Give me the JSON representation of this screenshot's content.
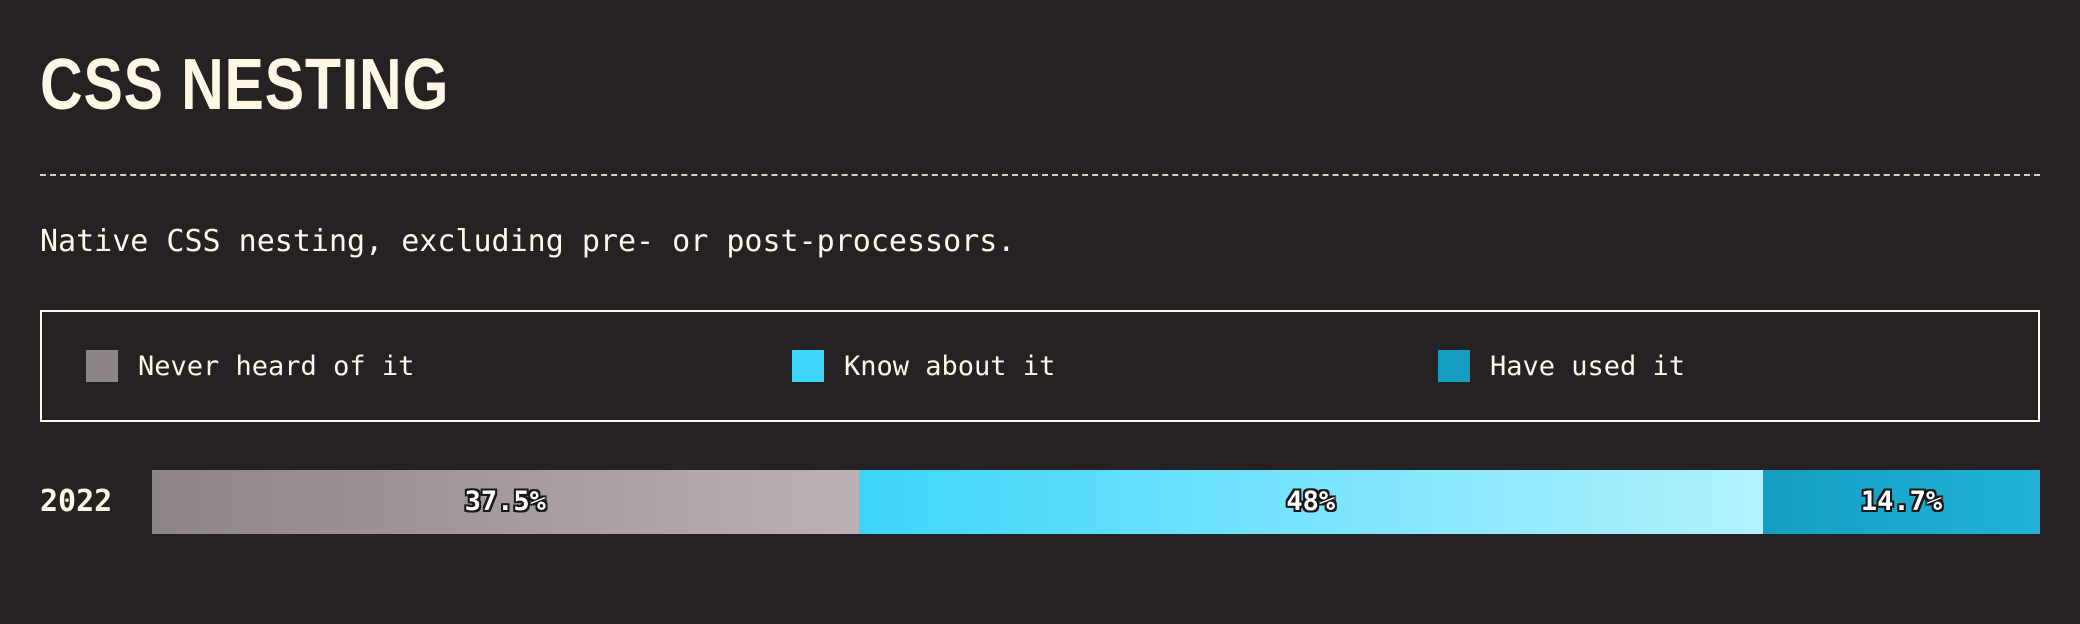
{
  "title": "CSS NESTING",
  "description": "Native CSS nesting, excluding pre- or post-processors.",
  "legend": [
    {
      "label": "Never heard of it",
      "color": "#8d8487"
    },
    {
      "label": "Know about it",
      "color": "#3ed5fa"
    },
    {
      "label": "Have used it",
      "color": "#149ec1"
    }
  ],
  "chart_data": {
    "type": "bar",
    "orientation": "horizontal",
    "stacked": true,
    "normalized": true,
    "categories": [
      "2022"
    ],
    "series": [
      {
        "name": "Never heard of it",
        "values": [
          37.5
        ],
        "label": "37.5%",
        "color": "#8d8487",
        "gradient_end": "#bcb1b4"
      },
      {
        "name": "Know about it",
        "values": [
          48
        ],
        "label": "48%",
        "color": "#3ed5fa",
        "gradient_end": "#b3f2ff"
      },
      {
        "name": "Have used it",
        "values": [
          14.7
        ],
        "label": "14.7%",
        "color": "#149ec1",
        "gradient_end": "#22b2d8"
      }
    ],
    "title": "CSS NESTING",
    "xlabel": "",
    "ylabel": "",
    "xlim": [
      0,
      100
    ],
    "legend_position": "top"
  }
}
